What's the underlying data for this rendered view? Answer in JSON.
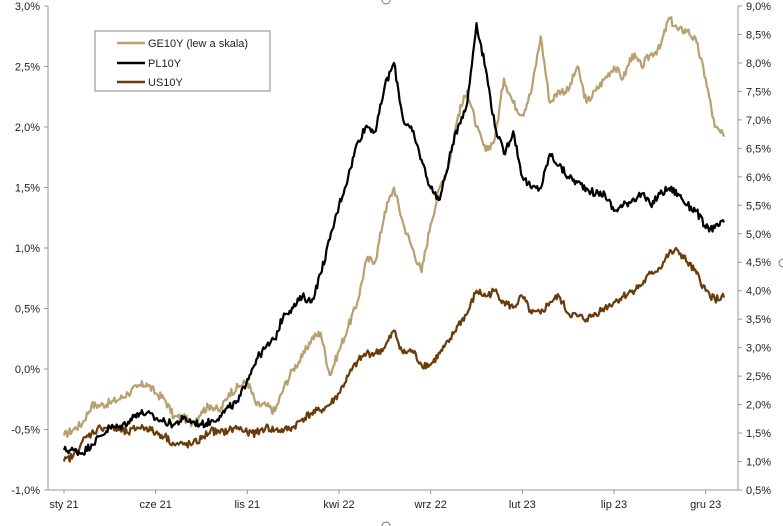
{
  "chart_data": {
    "type": "line",
    "title": "",
    "xlabel": "",
    "ylabel_left": "",
    "ylabel_right": "",
    "grid": false,
    "legend_position": "top-left",
    "x_range": [
      0,
      36
    ],
    "x_ticks": [
      {
        "label": "sty 21",
        "x": 0
      },
      {
        "label": "cze 21",
        "x": 5
      },
      {
        "label": "lis 21",
        "x": 10
      },
      {
        "label": "kwi 22",
        "x": 15
      },
      {
        "label": "wrz 22",
        "x": 20
      },
      {
        "label": "lut 23",
        "x": 25
      },
      {
        "label": "lip 23",
        "x": 30
      },
      {
        "label": "gru 23",
        "x": 35
      }
    ],
    "left_axis": {
      "range": [
        -1.0,
        3.0
      ],
      "ticks": [
        "-1,0%",
        "-0,5%",
        "0,0%",
        "0,5%",
        "1,0%",
        "1,5%",
        "2,0%",
        "2,5%",
        "3,0%"
      ],
      "tick_values": [
        -1.0,
        -0.5,
        0.0,
        0.5,
        1.0,
        1.5,
        2.0,
        2.5,
        3.0
      ]
    },
    "right_axis": {
      "range": [
        0.5,
        9.0
      ],
      "ticks": [
        "0,5%",
        "1,0%",
        "1,5%",
        "2,0%",
        "2,5%",
        "3,0%",
        "3,5%",
        "4,0%",
        "4,5%",
        "5,0%",
        "5,5%",
        "6,0%",
        "6,5%",
        "7,0%",
        "7,5%",
        "8,0%",
        "8,5%",
        "9,0%"
      ],
      "tick_values": [
        0.5,
        1.0,
        1.5,
        2.0,
        2.5,
        3.0,
        3.5,
        4.0,
        4.5,
        5.0,
        5.5,
        6.0,
        6.5,
        7.0,
        7.5,
        8.0,
        8.5,
        9.0
      ]
    },
    "series": [
      {
        "name": "GE10Y (lew a skala)",
        "axis": "left",
        "color": "#b8a070",
        "x": [
          0,
          0.5,
          1,
          1.5,
          2,
          2.5,
          3,
          3.5,
          4,
          4.5,
          5,
          5.5,
          6,
          6.5,
          7,
          7.5,
          8,
          8.5,
          9,
          9.5,
          10,
          10.5,
          11,
          11.5,
          12,
          12.5,
          13,
          13.5,
          14,
          14.5,
          15,
          15.5,
          16,
          16.5,
          17,
          17.5,
          18,
          18.5,
          19,
          19.5,
          20,
          20.5,
          21,
          21.5,
          22,
          22.5,
          23,
          23.5,
          24,
          24.5,
          25,
          25.5,
          26,
          26.5,
          27,
          27.5,
          28,
          28.5,
          29,
          29.5,
          30,
          30.5,
          31,
          31.5,
          32,
          32.5,
          33,
          33.5,
          34,
          34.5,
          35,
          35.5,
          36
        ],
        "values": [
          -0.55,
          -0.5,
          -0.45,
          -0.3,
          -0.3,
          -0.28,
          -0.25,
          -0.2,
          -0.15,
          -0.12,
          -0.2,
          -0.25,
          -0.4,
          -0.4,
          -0.45,
          -0.35,
          -0.3,
          -0.35,
          -0.2,
          -0.15,
          -0.1,
          -0.3,
          -0.3,
          -0.35,
          -0.15,
          0.0,
          0.1,
          0.25,
          0.3,
          -0.05,
          0.15,
          0.35,
          0.55,
          0.9,
          0.9,
          1.3,
          1.5,
          1.2,
          1.0,
          0.8,
          1.2,
          1.5,
          1.7,
          2.1,
          2.3,
          2.0,
          1.8,
          1.9,
          2.4,
          2.2,
          2.1,
          2.3,
          2.75,
          2.2,
          2.3,
          2.3,
          2.5,
          2.2,
          2.3,
          2.4,
          2.5,
          2.4,
          2.6,
          2.5,
          2.6,
          2.65,
          2.9,
          2.8,
          2.8,
          2.7,
          2.4,
          2.0,
          1.92
        ]
      },
      {
        "name": "PL10Y",
        "axis": "right",
        "color": "#000000",
        "x": [
          0,
          0.5,
          1,
          1.5,
          2,
          2.5,
          3,
          3.5,
          4,
          4.5,
          5,
          5.5,
          6,
          6.5,
          7,
          7.5,
          8,
          8.5,
          9,
          9.5,
          10,
          10.5,
          11,
          11.5,
          12,
          12.5,
          13,
          13.5,
          14,
          14.5,
          15,
          15.5,
          16,
          16.5,
          17,
          17.5,
          18,
          18.5,
          19,
          19.5,
          20,
          20.5,
          21,
          21.5,
          22,
          22.5,
          23,
          23.5,
          24,
          24.5,
          25,
          25.5,
          26,
          26.5,
          27,
          27.5,
          28,
          28.5,
          29,
          29.5,
          30,
          30.5,
          31,
          31.5,
          32,
          32.5,
          33,
          33.5,
          34,
          34.5,
          35,
          35.5,
          36
        ],
        "values": [
          1.2,
          1.2,
          1.15,
          1.3,
          1.45,
          1.6,
          1.6,
          1.7,
          1.85,
          1.85,
          1.75,
          1.7,
          1.65,
          1.75,
          1.7,
          1.65,
          1.7,
          1.8,
          1.95,
          2.05,
          2.45,
          2.8,
          3.0,
          3.15,
          3.6,
          3.7,
          3.9,
          3.8,
          4.3,
          4.9,
          5.5,
          6.0,
          6.6,
          6.9,
          6.8,
          7.6,
          8.0,
          7.0,
          6.8,
          6.3,
          5.8,
          5.6,
          6.3,
          6.9,
          7.3,
          8.7,
          7.9,
          6.9,
          6.4,
          6.8,
          6.0,
          5.8,
          5.8,
          6.4,
          6.2,
          6.0,
          5.9,
          5.8,
          5.7,
          5.7,
          5.4,
          5.5,
          5.6,
          5.7,
          5.5,
          5.7,
          5.8,
          5.7,
          5.5,
          5.4,
          5.1,
          5.1,
          5.2
        ]
      },
      {
        "name": "US10Y",
        "axis": "right",
        "color": "#6b3c0a",
        "x": [
          0,
          0.5,
          1,
          1.5,
          2,
          2.5,
          3,
          3.5,
          4,
          4.5,
          5,
          5.5,
          6,
          6.5,
          7,
          7.5,
          8,
          8.5,
          9,
          9.5,
          10,
          10.5,
          11,
          11.5,
          12,
          12.5,
          13,
          13.5,
          14,
          14.5,
          15,
          15.5,
          16,
          16.5,
          17,
          17.5,
          18,
          18.5,
          19,
          19.5,
          20,
          20.5,
          21,
          21.5,
          22,
          22.5,
          23,
          23.5,
          24,
          24.5,
          25,
          25.5,
          26,
          26.5,
          27,
          27.5,
          28,
          28.5,
          29,
          29.5,
          30,
          30.5,
          31,
          31.5,
          32,
          32.5,
          33,
          33.5,
          34,
          34.5,
          35,
          35.5,
          36
        ],
        "values": [
          1.0,
          1.1,
          1.35,
          1.5,
          1.6,
          1.6,
          1.55,
          1.5,
          1.6,
          1.6,
          1.5,
          1.45,
          1.3,
          1.3,
          1.3,
          1.4,
          1.55,
          1.5,
          1.55,
          1.6,
          1.5,
          1.5,
          1.6,
          1.55,
          1.55,
          1.6,
          1.75,
          1.85,
          1.9,
          2.0,
          2.2,
          2.5,
          2.75,
          2.9,
          2.9,
          3.0,
          3.3,
          2.9,
          2.95,
          2.7,
          2.7,
          2.9,
          3.1,
          3.4,
          3.6,
          4.0,
          3.9,
          4.0,
          3.8,
          3.7,
          3.9,
          3.6,
          3.6,
          3.8,
          3.9,
          3.6,
          3.55,
          3.5,
          3.6,
          3.7,
          3.8,
          3.9,
          4.0,
          4.1,
          4.3,
          4.4,
          4.65,
          4.7,
          4.5,
          4.3,
          4.0,
          3.85,
          3.88
        ]
      }
    ]
  }
}
